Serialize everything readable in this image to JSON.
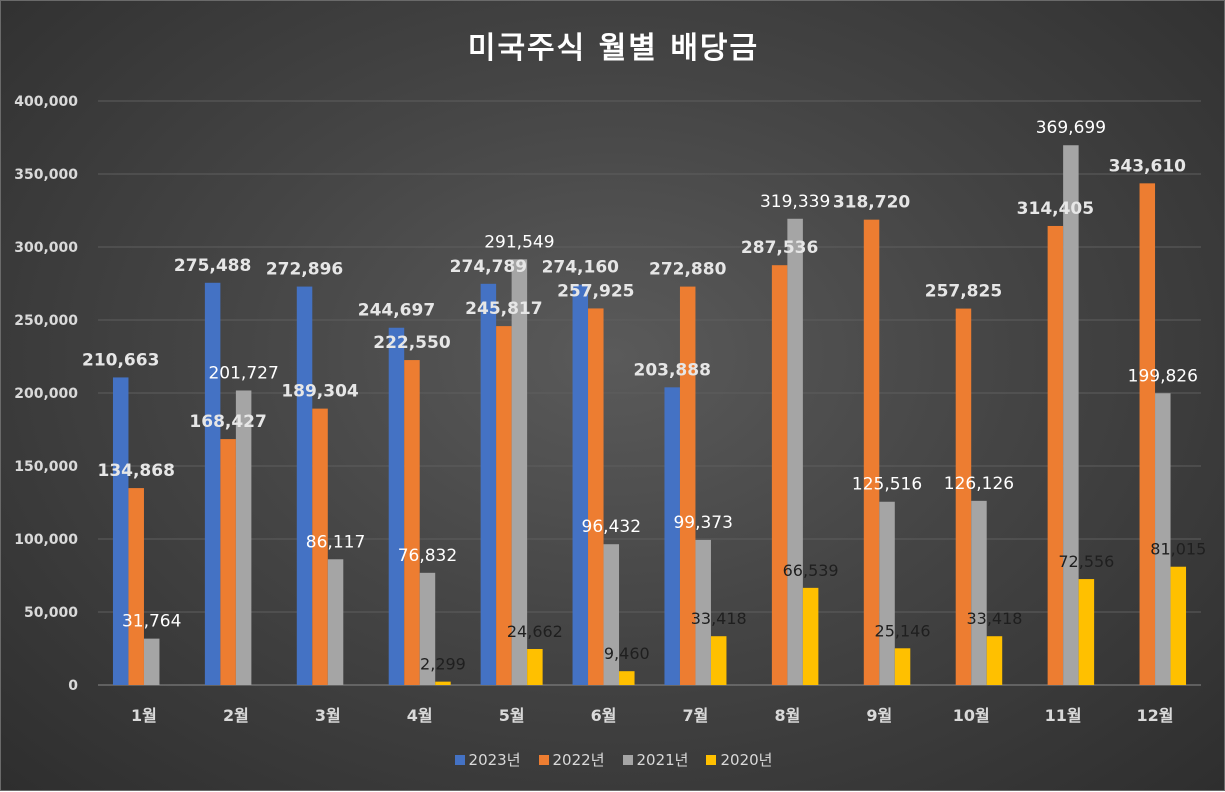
{
  "chart_data": {
    "type": "bar",
    "title": "미국주식 월별 배당금",
    "categories": [
      "1월",
      "2월",
      "3월",
      "4월",
      "5월",
      "6월",
      "7월",
      "8월",
      "9월",
      "10월",
      "11월",
      "12월"
    ],
    "series": [
      {
        "name": "2023년",
        "color": "#4472c4",
        "values": [
          210663,
          275488,
          272896,
          244697,
          274789,
          274160,
          203888,
          null,
          null,
          null,
          null,
          null
        ],
        "labels": [
          "210,663",
          "275,488",
          "272,896",
          "244,697",
          "274,789",
          "274,160",
          "203,888",
          "",
          "",
          "",
          "",
          ""
        ]
      },
      {
        "name": "2022년",
        "color": "#ed7d31",
        "values": [
          134868,
          168427,
          189304,
          222550,
          245817,
          257925,
          272880,
          287536,
          318720,
          257825,
          314405,
          343610
        ],
        "labels": [
          "134,868",
          "168,427",
          "189,304",
          "222,550",
          "245,817",
          "257,925",
          "272,880",
          "287,536",
          "318,720",
          "257,825",
          "314,405",
          "343,610"
        ]
      },
      {
        "name": "2021년",
        "color": "#a5a5a5",
        "values": [
          31764,
          201727,
          86117,
          76832,
          291549,
          96432,
          99373,
          319339,
          125516,
          126126,
          369699,
          199826
        ],
        "labels": [
          "31,764",
          "201,727",
          "86,117",
          "76,832",
          "291,549",
          "96,432",
          "99,373",
          "319,339",
          "125,516",
          "126,126",
          "369,699",
          "199,826"
        ]
      },
      {
        "name": "2020년",
        "color": "#ffc000",
        "values": [
          null,
          null,
          null,
          2299,
          24662,
          9460,
          33418,
          66539,
          25146,
          33418,
          72556,
          81015
        ],
        "labels": [
          "",
          "",
          "",
          "2,299",
          "24,662",
          "9,460",
          "33,418",
          "66,539",
          "25,146",
          "33,418",
          "72,556",
          "81,015"
        ]
      }
    ],
    "y_ticks": [
      "0",
      "50,000",
      "100,000",
      "150,000",
      "200,000",
      "250,000",
      "300,000",
      "350,000",
      "400,000"
    ],
    "ylim": [
      0,
      400000
    ],
    "xlabel": "",
    "ylabel": "",
    "grid": true,
    "legend_position": "bottom"
  }
}
